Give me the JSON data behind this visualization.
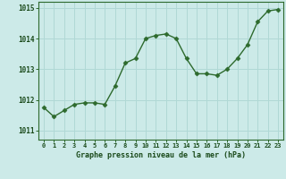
{
  "x": [
    0,
    1,
    2,
    3,
    4,
    5,
    6,
    7,
    8,
    9,
    10,
    11,
    12,
    13,
    14,
    15,
    16,
    17,
    18,
    19,
    20,
    21,
    22,
    23
  ],
  "y": [
    1011.75,
    1011.45,
    1011.65,
    1011.85,
    1011.9,
    1011.9,
    1011.85,
    1012.45,
    1013.2,
    1013.35,
    1014.0,
    1014.1,
    1014.15,
    1014.0,
    1013.35,
    1012.85,
    1012.85,
    1012.8,
    1013.0,
    1013.35,
    1013.8,
    1014.55,
    1014.9,
    1014.95
  ],
  "line_color": "#2d6a2d",
  "marker": "D",
  "marker_size": 2.5,
  "bg_color": "#cceae8",
  "grid_color": "#b0d8d5",
  "xlabel": "Graphe pression niveau de la mer (hPa)",
  "xlabel_color": "#1a4a1a",
  "tick_color": "#1a4a1a",
  "axis_color": "#2d6a2d",
  "ylim": [
    1010.7,
    1015.2
  ],
  "yticks": [
    1011,
    1012,
    1013,
    1014,
    1015
  ],
  "xlim": [
    -0.5,
    23.5
  ],
  "xticks": [
    0,
    1,
    2,
    3,
    4,
    5,
    6,
    7,
    8,
    9,
    10,
    11,
    12,
    13,
    14,
    15,
    16,
    17,
    18,
    19,
    20,
    21,
    22,
    23
  ]
}
